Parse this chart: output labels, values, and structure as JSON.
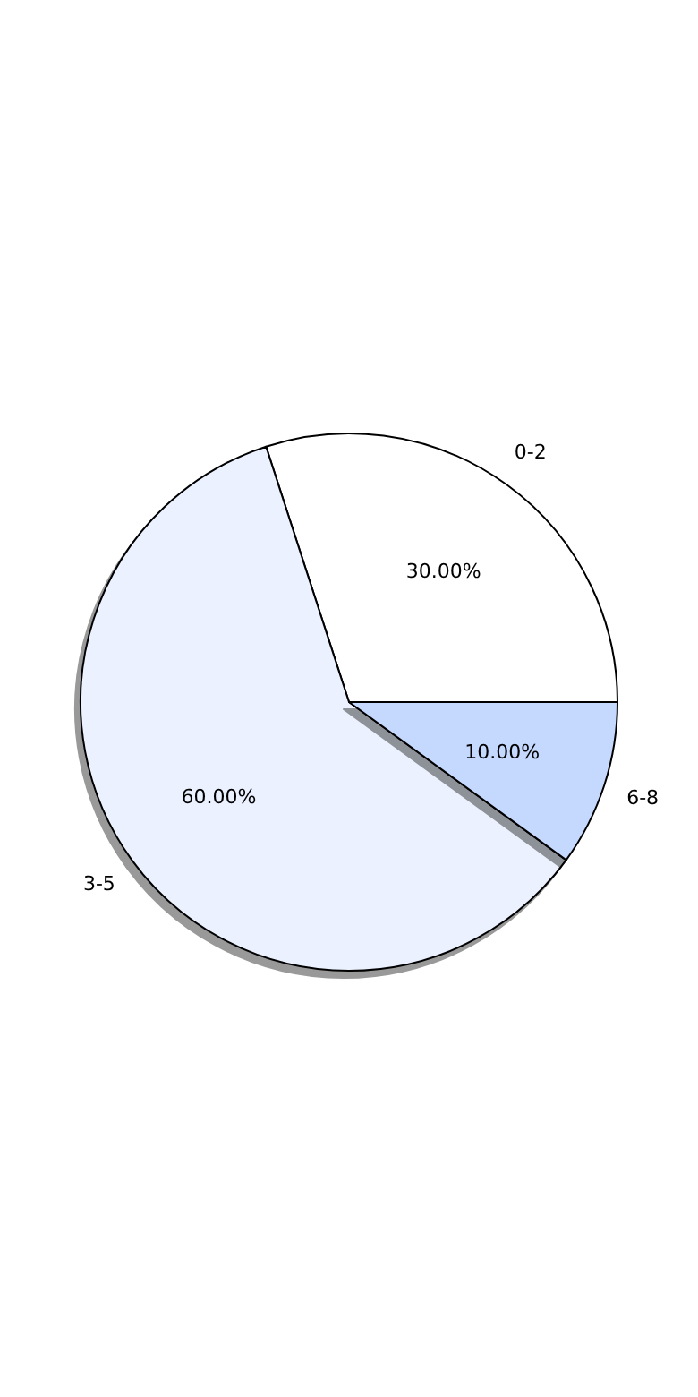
{
  "chart_data": {
    "type": "pie",
    "categories": [
      "0-2",
      "3-5",
      "6-8"
    ],
    "values": [
      30,
      60,
      10
    ],
    "colors": [
      "#ffffff",
      "#ebf1fe",
      "#c5d8fe"
    ],
    "value_labels": [
      "30.00%",
      "60.00%",
      "10.00%"
    ],
    "legend": false
  }
}
